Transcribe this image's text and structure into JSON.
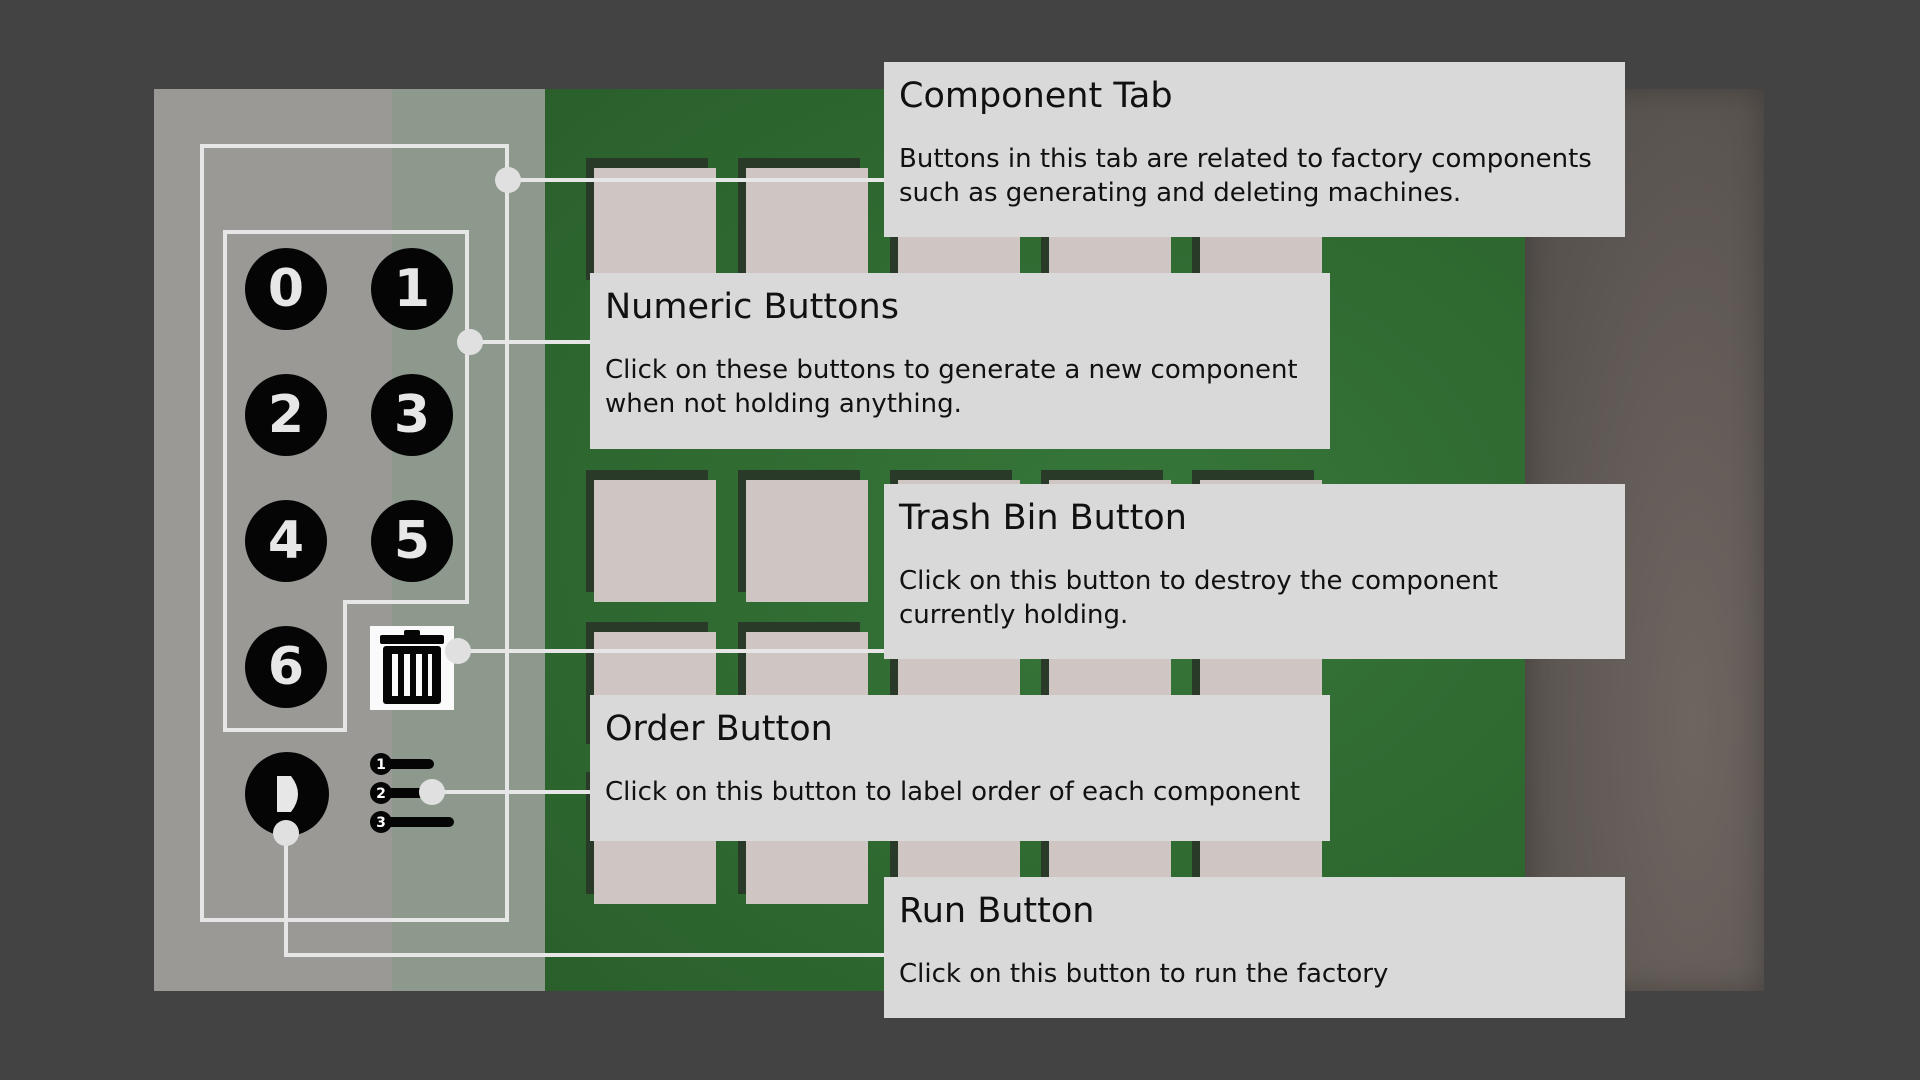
{
  "panel": {
    "numeric_buttons": [
      "0",
      "1",
      "2",
      "3",
      "4",
      "5",
      "6"
    ],
    "trash_icon": "trash-bin-icon",
    "run_icon": "play-icon",
    "order_icon": "ordered-list-icon",
    "order_numbers": [
      "1",
      "2",
      "3"
    ]
  },
  "colors": {
    "background": "#434343",
    "board_green": "#2f6a31",
    "slot": "#cfc6c4",
    "callout_bg": "#d9d9d9",
    "connector": "#e6e6e6"
  },
  "callouts": {
    "component_tab": {
      "title": "Component Tab",
      "description": "Buttons in this tab are related to factory components such as generating and deleting machines."
    },
    "numeric_buttons": {
      "title": "Numeric Buttons",
      "description": "Click on these buttons to generate a new component when not holding anything."
    },
    "trash_bin_button": {
      "title": "Trash Bin Button",
      "description": "Click on this button to destroy the component currently holding."
    },
    "order_button": {
      "title": "Order Button",
      "description": "Click on this button to label order of each component"
    },
    "run_button": {
      "title": "Run Button",
      "description": "Click on this button to run the factory"
    }
  }
}
